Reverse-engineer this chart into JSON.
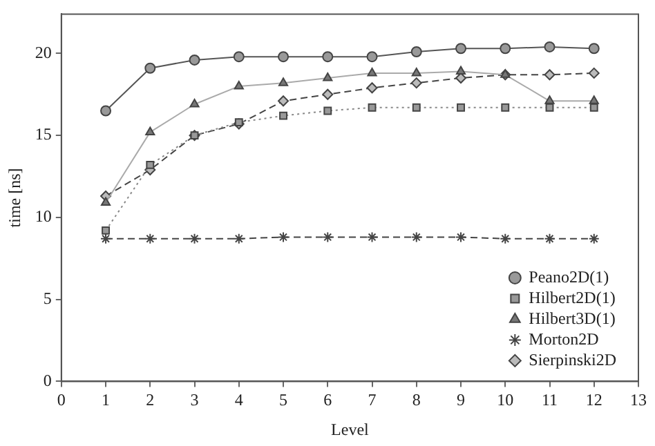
{
  "chart_data": {
    "type": "line",
    "xlabel": "Level",
    "ylabel": "time [ns]",
    "x": [
      1,
      2,
      3,
      4,
      5,
      6,
      7,
      8,
      9,
      10,
      11,
      12
    ],
    "xlim": [
      0,
      13
    ],
    "xticks": [
      0,
      1,
      2,
      3,
      4,
      5,
      6,
      7,
      8,
      9,
      10,
      11,
      12,
      13
    ],
    "ylim": [
      0,
      22.4
    ],
    "yticks": [
      0,
      5,
      10,
      15,
      20
    ],
    "grid": false,
    "legend": "bottom right",
    "series": [
      {
        "name": "Peano2D(1)",
        "color": "#555555",
        "marker": "circle",
        "line_style": "solid",
        "values": [
          16.5,
          19.1,
          19.6,
          19.8,
          19.8,
          19.8,
          19.8,
          20.1,
          20.3,
          20.3,
          20.4,
          20.3
        ]
      },
      {
        "name": "Hilbert2D(1)",
        "color": "#888888",
        "marker": "square",
        "line_style": "dotted",
        "values": [
          9.2,
          13.2,
          15.0,
          15.8,
          16.2,
          16.5,
          16.7,
          16.7,
          16.7,
          16.7,
          16.7,
          16.7
        ]
      },
      {
        "name": "Hilbert3D(1)",
        "color": "#aaaaaa",
        "marker": "triangle",
        "line_style": "solid",
        "values": [
          10.9,
          15.2,
          16.9,
          18.0,
          18.2,
          18.5,
          18.8,
          18.8,
          18.9,
          18.7,
          17.1,
          17.1
        ]
      },
      {
        "name": "Morton2D",
        "color": "#444444",
        "marker": "cross",
        "line_style": "dashed",
        "values": [
          8.7,
          8.7,
          8.7,
          8.7,
          8.8,
          8.8,
          8.8,
          8.8,
          8.8,
          8.7,
          8.7,
          8.7
        ]
      },
      {
        "name": "Sierpinski2D",
        "color": "#444444",
        "marker": "diamond",
        "line_style": "dashed",
        "values": [
          11.3,
          12.9,
          15.0,
          15.7,
          17.1,
          17.5,
          17.9,
          18.2,
          18.5,
          18.7,
          18.7,
          18.8
        ]
      }
    ]
  }
}
